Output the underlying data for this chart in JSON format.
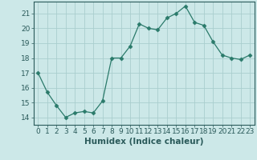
{
  "x": [
    0,
    1,
    2,
    3,
    4,
    5,
    6,
    7,
    8,
    9,
    10,
    11,
    12,
    13,
    14,
    15,
    16,
    17,
    18,
    19,
    20,
    21,
    22,
    23
  ],
  "y": [
    17.0,
    15.7,
    14.8,
    14.0,
    14.3,
    14.4,
    14.3,
    15.1,
    18.0,
    18.0,
    18.8,
    20.3,
    20.0,
    19.9,
    20.7,
    21.0,
    21.5,
    20.4,
    20.2,
    19.1,
    18.2,
    18.0,
    17.9,
    18.2
  ],
  "line_color": "#2a7a6a",
  "marker": "D",
  "marker_size": 2.5,
  "bg_color": "#cce8e8",
  "grid_color": "#aacece",
  "xlabel": "Humidex (Indice chaleur)",
  "ylabel": "",
  "xlim": [
    -0.5,
    23.5
  ],
  "ylim": [
    13.5,
    21.8
  ],
  "yticks": [
    14,
    15,
    16,
    17,
    18,
    19,
    20,
    21
  ],
  "xticks": [
    0,
    1,
    2,
    3,
    4,
    5,
    6,
    7,
    8,
    9,
    10,
    11,
    12,
    13,
    14,
    15,
    16,
    17,
    18,
    19,
    20,
    21,
    22,
    23
  ],
  "tick_color": "#2a5a5a",
  "spine_color": "#2a5a5a",
  "label_fontsize": 7.5,
  "tick_fontsize": 6.5
}
